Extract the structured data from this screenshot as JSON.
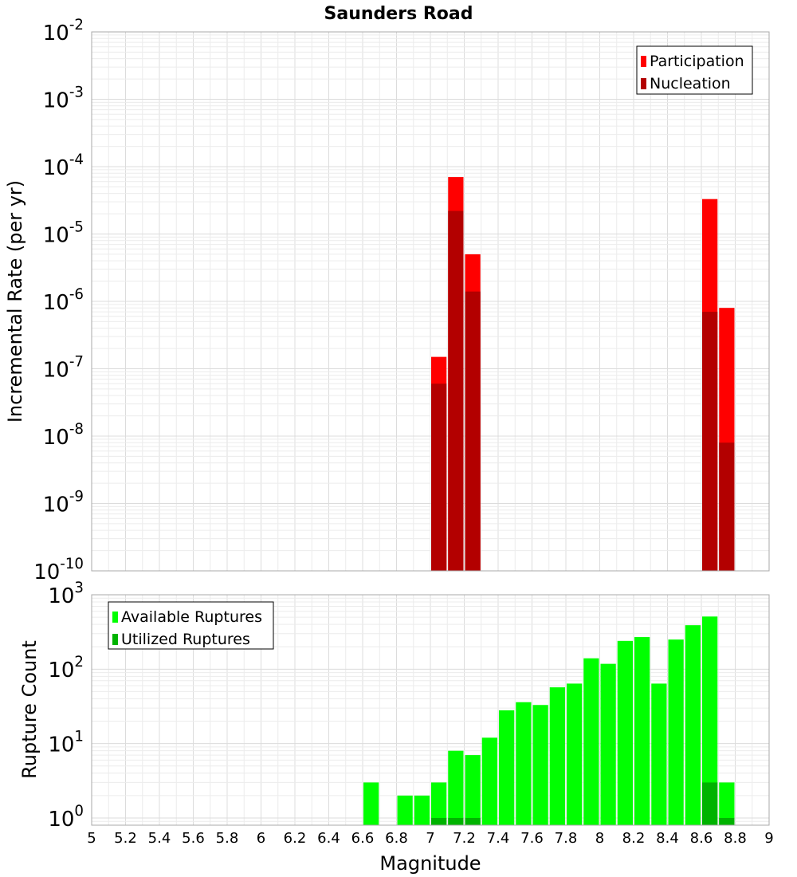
{
  "chart_data": [
    {
      "type": "bar",
      "title": "Saunders Road",
      "xlabel": "",
      "ylabel": "Incremental Rate (per yr)",
      "y_scale": "log",
      "xlim": [
        5,
        9
      ],
      "ylim": [
        1e-10,
        0.01
      ],
      "y_ticks": [
        {
          "base": "10",
          "exp": "-10"
        },
        {
          "base": "10",
          "exp": "-9"
        },
        {
          "base": "10",
          "exp": "-8"
        },
        {
          "base": "10",
          "exp": "-7"
        },
        {
          "base": "10",
          "exp": "-6"
        },
        {
          "base": "10",
          "exp": "-5"
        },
        {
          "base": "10",
          "exp": "-4"
        },
        {
          "base": "10",
          "exp": "-3"
        },
        {
          "base": "10",
          "exp": "-2"
        }
      ],
      "grid": true,
      "legend_position": "top-right",
      "series": [
        {
          "name": "Participation",
          "color": "#ff0000",
          "x": [
            7.05,
            7.15,
            7.25,
            8.65,
            8.75
          ],
          "values": [
            1.5e-07,
            7e-05,
            5e-06,
            3.3e-05,
            8e-07
          ]
        },
        {
          "name": "Nucleation",
          "color": "#b30000",
          "x": [
            7.05,
            7.15,
            7.25,
            8.65,
            8.75
          ],
          "values": [
            6e-08,
            2.2e-05,
            1.4e-06,
            7e-07,
            8e-09
          ]
        }
      ]
    },
    {
      "type": "bar",
      "title": "",
      "xlabel": "Magnitude",
      "ylabel": "Rupture Count",
      "y_scale": "log",
      "xlim": [
        5,
        9
      ],
      "ylim": [
        0.8,
        1000
      ],
      "x_ticks": [
        "5",
        "5.2",
        "5.4",
        "5.6",
        "5.8",
        "6",
        "6.2",
        "6.4",
        "6.6",
        "6.8",
        "7",
        "7.2",
        "7.4",
        "7.6",
        "7.8",
        "8",
        "8.2",
        "8.4",
        "8.6",
        "8.8",
        "9"
      ],
      "y_ticks": [
        {
          "base": "10",
          "exp": "0"
        },
        {
          "base": "10",
          "exp": "1"
        },
        {
          "base": "10",
          "exp": "2"
        },
        {
          "base": "10",
          "exp": "3"
        }
      ],
      "grid": true,
      "legend_position": "top-left",
      "series": [
        {
          "name": "Available Ruptures",
          "color": "#00ff00",
          "x": [
            6.65,
            6.85,
            6.95,
            7.05,
            7.15,
            7.25,
            7.35,
            7.45,
            7.55,
            7.65,
            7.75,
            7.85,
            7.95,
            8.05,
            8.15,
            8.25,
            8.35,
            8.45,
            8.55,
            8.65,
            8.75
          ],
          "values": [
            3,
            2,
            2,
            3,
            8,
            7,
            12,
            28,
            36,
            33,
            57,
            64,
            140,
            118,
            240,
            270,
            64,
            250,
            390,
            510,
            3
          ]
        },
        {
          "name": "Utilized Ruptures",
          "color": "#00b300",
          "x": [
            7.05,
            7.15,
            7.25,
            8.65,
            8.75
          ],
          "values": [
            1,
            1,
            1,
            3,
            1
          ]
        }
      ]
    }
  ]
}
